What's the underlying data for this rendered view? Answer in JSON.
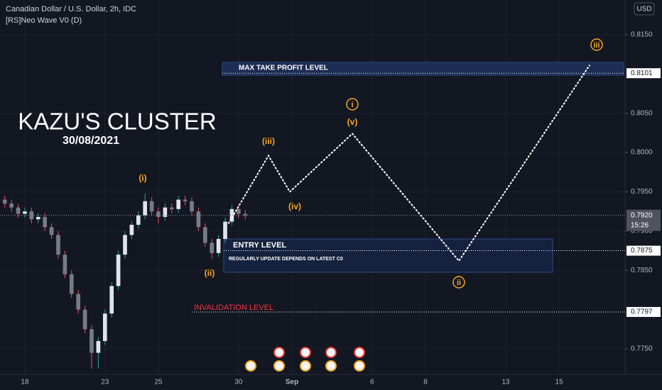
{
  "chart_data": {
    "type": "candlestick",
    "title": "Canadian Dollar / U.S. Dollar, 2h, IDC",
    "subtitle": "[RS]Neo Wave V0 (D)",
    "currency": "USD",
    "annotation_title": "KAZU'S CLUSTER",
    "annotation_date": "30/08/2021",
    "x": [
      -0.75,
      -0.5,
      -0.25,
      0,
      0.25,
      0.5,
      0.75,
      1,
      1.25,
      1.5,
      1.75,
      2,
      2.25,
      2.5,
      2.75,
      3,
      3.25,
      3.5,
      3.75,
      4,
      4.25,
      4.5,
      4.75,
      5,
      5.25,
      5.5,
      5.75,
      6,
      6.25,
      6.5,
      6.75,
      7,
      7.25,
      7.5,
      7.75,
      8,
      8.25
    ],
    "open": [
      0.794,
      0.7935,
      0.793,
      0.7922,
      0.7925,
      0.7915,
      0.7918,
      0.7905,
      0.7895,
      0.787,
      0.7845,
      0.782,
      0.78,
      0.7775,
      0.7745,
      0.776,
      0.7795,
      0.783,
      0.787,
      0.7895,
      0.7908,
      0.792,
      0.7938,
      0.7925,
      0.7918,
      0.793,
      0.7928,
      0.794,
      0.7938,
      0.7925,
      0.7905,
      0.7885,
      0.7872,
      0.789,
      0.7912,
      0.7928,
      0.7922
    ],
    "high": [
      0.7945,
      0.794,
      0.7935,
      0.793,
      0.793,
      0.7923,
      0.7923,
      0.791,
      0.79,
      0.7875,
      0.785,
      0.7825,
      0.7805,
      0.778,
      0.7765,
      0.78,
      0.7835,
      0.7875,
      0.79,
      0.7913,
      0.7925,
      0.7948,
      0.7943,
      0.793,
      0.7935,
      0.7935,
      0.7945,
      0.7945,
      0.7943,
      0.793,
      0.791,
      0.789,
      0.7895,
      0.7917,
      0.7933,
      0.7933,
      0.7927
    ],
    "low": [
      0.793,
      0.7925,
      0.7917,
      0.7917,
      0.791,
      0.791,
      0.79,
      0.789,
      0.7865,
      0.784,
      0.7815,
      0.7795,
      0.777,
      0.7725,
      0.7725,
      0.7755,
      0.779,
      0.7825,
      0.7865,
      0.789,
      0.7903,
      0.7915,
      0.792,
      0.791,
      0.7913,
      0.7923,
      0.7923,
      0.7933,
      0.792,
      0.79,
      0.788,
      0.7865,
      0.7867,
      0.7885,
      0.7907,
      0.7917,
      0.7915
    ],
    "close": [
      0.7935,
      0.793,
      0.7922,
      0.7925,
      0.7915,
      0.7918,
      0.7905,
      0.7895,
      0.787,
      0.7845,
      0.782,
      0.78,
      0.7775,
      0.7745,
      0.776,
      0.7795,
      0.783,
      0.787,
      0.7895,
      0.7908,
      0.792,
      0.7938,
      0.7925,
      0.7918,
      0.793,
      0.7928,
      0.794,
      0.7938,
      0.7925,
      0.7905,
      0.7885,
      0.7872,
      0.789,
      0.7912,
      0.7928,
      0.7922,
      0.792
    ],
    "xlim": [
      -0.93,
      22.47
    ],
    "xticks": [
      {
        "value": 0,
        "label": "18"
      },
      {
        "value": 3,
        "label": "23"
      },
      {
        "value": 5,
        "label": "25"
      },
      {
        "value": 8,
        "label": "30"
      },
      {
        "value": 10,
        "label": "Sep"
      },
      {
        "value": 13,
        "label": "6"
      },
      {
        "value": 15,
        "label": "8"
      },
      {
        "value": 18,
        "label": "13"
      },
      {
        "value": 20,
        "label": "15"
      }
    ],
    "ylim": [
      0.77175,
      0.81942
    ],
    "yticks": [
      {
        "value": 0.815,
        "label": "0.8150"
      },
      {
        "value": 0.805,
        "label": "0.8050"
      },
      {
        "value": 0.8,
        "label": "0.8000"
      },
      {
        "value": 0.795,
        "label": "0.7950"
      },
      {
        "value": 0.79,
        "label": "0.7900"
      },
      {
        "value": 0.785,
        "label": "0.7850"
      },
      {
        "value": 0.775,
        "label": "0.7750"
      }
    ],
    "grid": true,
    "last_price": {
      "value": 0.792,
      "label": "0.7920"
    },
    "countdown": "15:26",
    "levels": [
      {
        "name": "MAX TAKE PROFIT LEVEL",
        "value": 0.8101
      },
      {
        "name": "ENTRY LEVEL",
        "value": 0.7875,
        "note": "REGULARLY UPDATE DEPENDS ON LATEST C0"
      },
      {
        "name": "INVALIDATION LEVEL",
        "value": 0.7797
      }
    ],
    "projection": {
      "x": [
        7.63,
        9.12,
        9.92,
        12.26,
        16.25,
        21.14
      ],
      "values": [
        0.791,
        0.7996,
        0.795,
        0.8024,
        0.7862,
        0.8111
      ]
    },
    "wave_labels": [
      "(i)",
      "(ii)",
      "(iii)",
      "(iv)",
      "(v)",
      "i",
      "ii",
      "iii"
    ]
  }
}
